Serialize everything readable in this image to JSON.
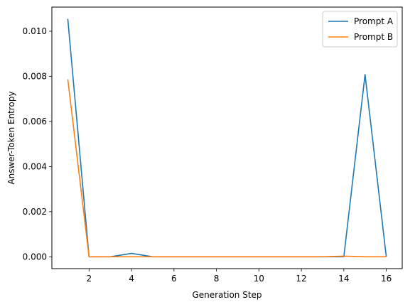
{
  "chart_data": {
    "type": "line",
    "title": "",
    "xlabel": "Generation Step",
    "ylabel": "Answer-Token Entropy",
    "xlim": [
      0.25,
      16.75
    ],
    "ylim": [
      -0.000525,
      0.01107
    ],
    "xticks": [
      2,
      4,
      6,
      8,
      10,
      12,
      14,
      16
    ],
    "xtick_labels": [
      "2",
      "4",
      "6",
      "8",
      "10",
      "12",
      "14",
      "16"
    ],
    "yticks": [
      0.0,
      0.002,
      0.004,
      0.006,
      0.008,
      0.01
    ],
    "ytick_labels": [
      "0.000",
      "0.002",
      "0.004",
      "0.006",
      "0.008",
      "0.010"
    ],
    "grid": false,
    "legend_position": "top-right",
    "x": [
      1,
      2,
      3,
      4,
      5,
      6,
      7,
      8,
      9,
      10,
      11,
      12,
      13,
      14,
      15,
      16
    ],
    "series": [
      {
        "name": "Prompt A",
        "color": "#1f77b4",
        "values": [
          0.01055,
          0.0,
          0.0,
          0.00015,
          0.0,
          0.0,
          0.0,
          0.0,
          0.0,
          0.0,
          0.0,
          0.0,
          0.0,
          0.0,
          0.00808,
          0.0
        ]
      },
      {
        "name": "Prompt B",
        "color": "#ff7f0e",
        "values": [
          0.00787,
          0.0,
          0.0,
          0.0,
          0.0,
          0.0,
          0.0,
          0.0,
          0.0,
          0.0,
          0.0,
          0.0,
          0.0,
          3e-05,
          0.0,
          0.0
        ]
      }
    ]
  }
}
